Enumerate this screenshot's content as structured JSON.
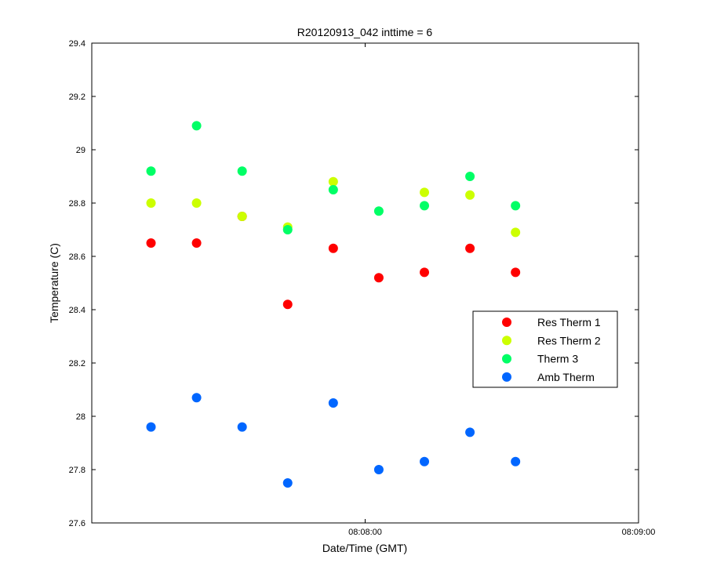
{
  "chart_data": {
    "type": "scatter",
    "title": "R20120913_042 inttime = 6",
    "xlabel": "Date/Time (GMT)",
    "ylabel": "Temperature (C)",
    "ylim": [
      27.6,
      29.4
    ],
    "yticks": [
      27.6,
      27.8,
      28,
      28.2,
      28.4,
      28.6,
      28.8,
      29,
      29.2,
      29.4
    ],
    "ytick_labels": [
      "27.6",
      "27.8",
      "28",
      "28.2",
      "28.4",
      "28.6",
      "28.8",
      "29",
      "29.2",
      "29.4"
    ],
    "xlim": [
      "08:07:00",
      "08:09:00"
    ],
    "xticks": [
      "08:08:00",
      "08:09:00"
    ],
    "xtick_labels": [
      "08:08:00",
      "08:09:00"
    ],
    "x": [
      "08:07:13",
      "08:07:23",
      "08:07:33",
      "08:07:43",
      "08:07:53",
      "08:08:03",
      "08:08:13",
      "08:08:23",
      "08:08:33"
    ],
    "grid": false,
    "legend_position": "right",
    "series": [
      {
        "name": "Res Therm 1",
        "color": "#ff0000",
        "values": [
          28.65,
          28.65,
          28.75,
          28.42,
          28.63,
          28.52,
          28.54,
          28.63,
          28.54
        ]
      },
      {
        "name": "Res Therm 2",
        "color": "#ccff00",
        "values": [
          28.8,
          28.8,
          28.75,
          28.71,
          28.88,
          null,
          28.84,
          28.83,
          28.69
        ]
      },
      {
        "name": "Therm 3",
        "color": "#00ff66",
        "values": [
          28.92,
          29.09,
          28.92,
          28.7,
          28.85,
          28.77,
          28.79,
          28.9,
          28.79
        ]
      },
      {
        "name": "Amb Therm",
        "color": "#0066ff",
        "values": [
          27.96,
          28.07,
          27.96,
          27.75,
          28.05,
          27.8,
          27.83,
          27.94,
          27.83
        ]
      }
    ]
  }
}
